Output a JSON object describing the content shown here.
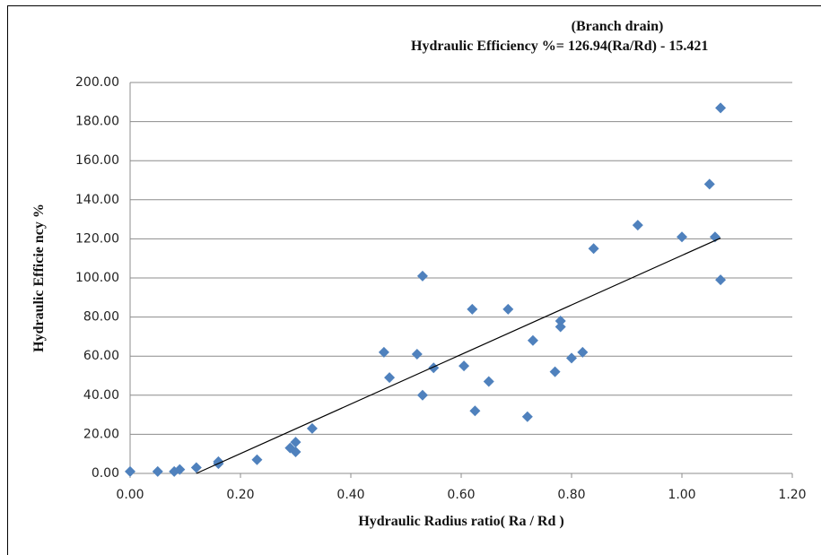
{
  "chart_data": {
    "type": "scatter",
    "title": "(Branch drain)",
    "subtitle": "Hydraulic Efficiency %= 126.94(Ra/Rd)  - 15.421",
    "x_label": "Hydraulic Radius ratio( Ra / Rd )",
    "y_label": "Hydraulic Efficie ncy %",
    "color": "#4f81bd",
    "grid": true,
    "x": [
      0.0,
      0.05,
      0.08,
      0.09,
      0.12,
      0.16,
      0.16,
      0.23,
      0.29,
      0.3,
      0.3,
      0.33,
      0.46,
      0.47,
      0.52,
      0.53,
      0.53,
      0.55,
      0.62,
      0.605,
      0.625,
      0.65,
      0.685,
      0.72,
      0.73,
      0.77,
      0.78,
      0.78,
      0.8,
      0.82,
      0.84,
      0.92,
      1.0,
      1.05,
      1.06,
      1.07,
      1.07
    ],
    "values": [
      1,
      1,
      1,
      2,
      3,
      6,
      5,
      7,
      13,
      16,
      11,
      23,
      62,
      49,
      61,
      101,
      40,
      54,
      84,
      55,
      32,
      47,
      84,
      29,
      68,
      52,
      78,
      75,
      59,
      62,
      115,
      127,
      121,
      148,
      121,
      187,
      99
    ],
    "trendline": {
      "x": [
        0.12,
        1.07
      ],
      "y": [
        0.0,
        120.4
      ]
    },
    "xlim": [
      0,
      1.2
    ],
    "ylim": [
      0,
      200
    ],
    "xticks": [
      {
        "value": 0,
        "label": "0.00"
      },
      {
        "value": 0.2,
        "label": "0.20"
      },
      {
        "value": 0.4,
        "label": "0.40"
      },
      {
        "value": 0.6,
        "label": "0.60"
      },
      {
        "value": 0.8,
        "label": "0.80"
      },
      {
        "value": 1.0,
        "label": "1.00"
      },
      {
        "value": 1.2,
        "label": "1.20"
      }
    ],
    "yticks": [
      {
        "value": 0,
        "label": "0.00"
      },
      {
        "value": 20,
        "label": "20.00"
      },
      {
        "value": 40,
        "label": "40.00"
      },
      {
        "value": 60,
        "label": "60.00"
      },
      {
        "value": 80,
        "label": "80.00"
      },
      {
        "value": 100,
        "label": "100.00"
      },
      {
        "value": 120,
        "label": "120.00"
      },
      {
        "value": 140,
        "label": "140.00"
      },
      {
        "value": 160,
        "label": "160.00"
      },
      {
        "value": 180,
        "label": "180.00"
      },
      {
        "value": 200,
        "label": "200.00"
      }
    ]
  }
}
